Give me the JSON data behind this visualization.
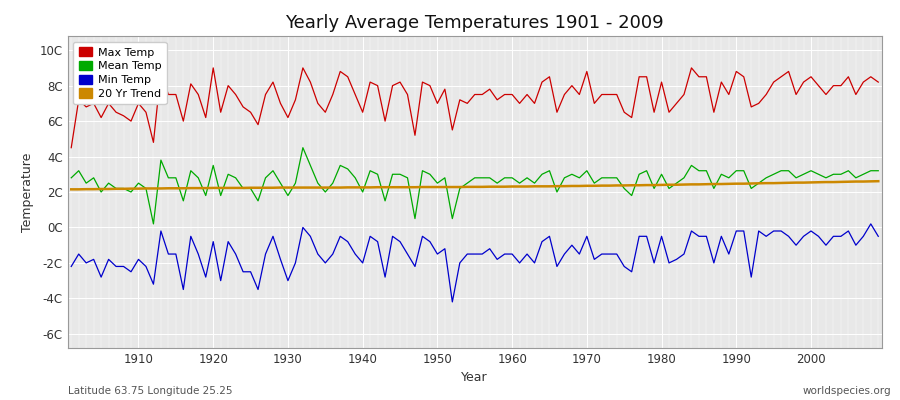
{
  "title": "Yearly Average Temperatures 1901 - 2009",
  "xlabel": "Year",
  "ylabel": "Temperature",
  "bottom_left_label": "Latitude 63.75 Longitude 25.25",
  "bottom_right_label": "worldspecies.org",
  "year_start": 1901,
  "year_end": 2009,
  "ylim": [
    -6.8,
    10.8
  ],
  "yticks": [
    -6,
    -4,
    -2,
    0,
    2,
    4,
    6,
    8,
    10
  ],
  "xticks": [
    1910,
    1920,
    1930,
    1940,
    1950,
    1960,
    1970,
    1980,
    1990,
    2000
  ],
  "legend_labels": [
    "Max Temp",
    "Mean Temp",
    "Min Temp",
    "20 Yr Trend"
  ],
  "legend_colors": [
    "#cc0000",
    "#00aa00",
    "#0000cc",
    "#cc8800"
  ],
  "bg_color": "#ffffff",
  "plot_bg_color": "#e8e8e8",
  "max_temp": [
    4.5,
    7.2,
    6.8,
    7.0,
    6.2,
    7.0,
    6.5,
    6.3,
    6.0,
    7.0,
    6.5,
    4.8,
    8.8,
    7.5,
    7.5,
    6.0,
    8.1,
    7.5,
    6.2,
    9.0,
    6.5,
    8.0,
    7.5,
    6.8,
    6.5,
    5.8,
    7.5,
    8.2,
    7.0,
    6.2,
    7.2,
    9.0,
    8.2,
    7.0,
    6.5,
    7.5,
    8.8,
    8.5,
    7.5,
    6.5,
    8.2,
    8.0,
    6.0,
    8.0,
    8.2,
    7.5,
    5.2,
    8.2,
    8.0,
    7.0,
    7.8,
    5.5,
    7.2,
    7.0,
    7.5,
    7.5,
    7.8,
    7.2,
    7.5,
    7.5,
    7.0,
    7.5,
    7.0,
    8.2,
    8.5,
    6.5,
    7.5,
    8.0,
    7.5,
    8.8,
    7.0,
    7.5,
    7.5,
    7.5,
    6.5,
    6.2,
    8.5,
    8.5,
    6.5,
    8.2,
    6.5,
    7.0,
    7.5,
    9.0,
    8.5,
    8.5,
    6.5,
    8.2,
    7.5,
    8.8,
    8.5,
    6.8,
    7.0,
    7.5,
    8.2,
    8.5,
    8.8,
    7.5,
    8.2,
    8.5,
    8.0,
    7.5,
    8.0,
    8.0,
    8.5,
    7.5,
    8.2,
    8.5,
    8.2
  ],
  "mean_temp": [
    2.8,
    3.2,
    2.5,
    2.8,
    2.0,
    2.5,
    2.2,
    2.2,
    2.0,
    2.5,
    2.2,
    0.2,
    3.8,
    2.8,
    2.8,
    1.5,
    3.2,
    2.8,
    1.8,
    3.5,
    1.8,
    3.0,
    2.8,
    2.2,
    2.2,
    1.5,
    2.8,
    3.2,
    2.5,
    1.8,
    2.5,
    4.5,
    3.5,
    2.5,
    2.0,
    2.5,
    3.5,
    3.3,
    2.8,
    2.0,
    3.2,
    3.0,
    1.5,
    3.0,
    3.0,
    2.8,
    0.5,
    3.2,
    3.0,
    2.5,
    2.8,
    0.5,
    2.2,
    2.5,
    2.8,
    2.8,
    2.8,
    2.5,
    2.8,
    2.8,
    2.5,
    2.8,
    2.5,
    3.0,
    3.2,
    2.0,
    2.8,
    3.0,
    2.8,
    3.2,
    2.5,
    2.8,
    2.8,
    2.8,
    2.2,
    1.8,
    3.0,
    3.2,
    2.2,
    3.0,
    2.2,
    2.5,
    2.8,
    3.5,
    3.2,
    3.2,
    2.2,
    3.0,
    2.8,
    3.2,
    3.2,
    2.2,
    2.5,
    2.8,
    3.0,
    3.2,
    3.2,
    2.8,
    3.0,
    3.2,
    3.0,
    2.8,
    3.0,
    3.0,
    3.2,
    2.8,
    3.0,
    3.2,
    3.2
  ],
  "min_temp": [
    -2.2,
    -1.5,
    -2.0,
    -1.8,
    -2.8,
    -1.8,
    -2.2,
    -2.2,
    -2.5,
    -1.8,
    -2.2,
    -3.2,
    -0.2,
    -1.5,
    -1.5,
    -3.5,
    -0.5,
    -1.5,
    -2.8,
    -0.8,
    -3.0,
    -0.8,
    -1.5,
    -2.5,
    -2.5,
    -3.5,
    -1.5,
    -0.5,
    -1.8,
    -3.0,
    -2.0,
    0.0,
    -0.5,
    -1.5,
    -2.0,
    -1.5,
    -0.5,
    -0.8,
    -1.5,
    -2.0,
    -0.5,
    -0.8,
    -2.8,
    -0.5,
    -0.8,
    -1.5,
    -2.2,
    -0.5,
    -0.8,
    -1.5,
    -1.2,
    -4.2,
    -2.0,
    -1.5,
    -1.5,
    -1.5,
    -1.2,
    -1.8,
    -1.5,
    -1.5,
    -2.0,
    -1.5,
    -2.0,
    -0.8,
    -0.5,
    -2.2,
    -1.5,
    -1.0,
    -1.5,
    -0.5,
    -1.8,
    -1.5,
    -1.5,
    -1.5,
    -2.2,
    -2.5,
    -0.5,
    -0.5,
    -2.0,
    -0.5,
    -2.0,
    -1.8,
    -1.5,
    -0.2,
    -0.5,
    -0.5,
    -2.0,
    -0.5,
    -1.5,
    -0.2,
    -0.2,
    -2.8,
    -0.2,
    -0.5,
    -0.2,
    -0.2,
    -0.5,
    -1.0,
    -0.5,
    -0.2,
    -0.5,
    -1.0,
    -0.5,
    -0.5,
    -0.2,
    -1.0,
    -0.5,
    0.2,
    -0.5
  ],
  "trend": [
    2.15,
    2.15,
    2.16,
    2.16,
    2.17,
    2.17,
    2.18,
    2.18,
    2.19,
    2.19,
    2.2,
    2.2,
    2.2,
    2.21,
    2.21,
    2.21,
    2.22,
    2.22,
    2.22,
    2.23,
    2.23,
    2.23,
    2.23,
    2.23,
    2.24,
    2.24,
    2.24,
    2.24,
    2.25,
    2.25,
    2.25,
    2.25,
    2.25,
    2.25,
    2.25,
    2.25,
    2.25,
    2.26,
    2.26,
    2.26,
    2.26,
    2.27,
    2.27,
    2.27,
    2.27,
    2.27,
    2.27,
    2.28,
    2.28,
    2.28,
    2.28,
    2.28,
    2.28,
    2.29,
    2.29,
    2.29,
    2.3,
    2.3,
    2.3,
    2.31,
    2.31,
    2.31,
    2.32,
    2.32,
    2.32,
    2.33,
    2.33,
    2.34,
    2.34,
    2.35,
    2.35,
    2.36,
    2.36,
    2.37,
    2.37,
    2.38,
    2.38,
    2.39,
    2.39,
    2.4,
    2.41,
    2.41,
    2.42,
    2.43,
    2.43,
    2.44,
    2.45,
    2.45,
    2.46,
    2.47,
    2.47,
    2.48,
    2.49,
    2.5,
    2.5,
    2.51,
    2.52,
    2.53,
    2.53,
    2.54,
    2.55,
    2.56,
    2.56,
    2.57,
    2.58,
    2.59,
    2.59,
    2.6,
    2.61
  ]
}
